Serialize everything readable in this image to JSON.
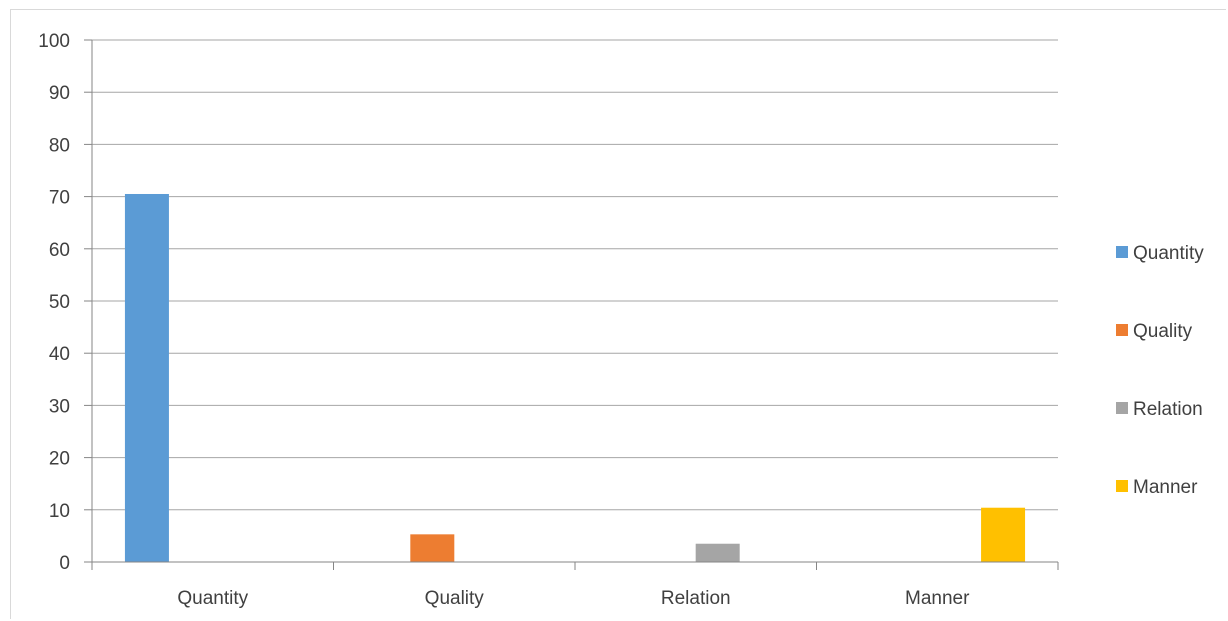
{
  "chart_data": {
    "type": "bar",
    "categories": [
      "Quantity",
      "Quality",
      "Relation",
      "Manner"
    ],
    "series": [
      {
        "name": "Quantity",
        "color": "#5b9bd5",
        "values": [
          70.5,
          0,
          0,
          0
        ]
      },
      {
        "name": "Quality",
        "color": "#ed7d31",
        "values": [
          0,
          5.3,
          0,
          0
        ]
      },
      {
        "name": "Relation",
        "color": "#a5a5a5",
        "values": [
          0,
          0,
          3.5,
          0
        ]
      },
      {
        "name": "Manner",
        "color": "#ffc000",
        "values": [
          0,
          0,
          0,
          10.4
        ]
      }
    ],
    "ylim": [
      0,
      100
    ],
    "yticks": [
      "0",
      "10",
      "20",
      "30",
      "40",
      "50",
      "60",
      "70",
      "80",
      "90",
      "100"
    ],
    "grid": true,
    "legend": "right",
    "xlabel": "",
    "ylabel": "",
    "title": ""
  }
}
